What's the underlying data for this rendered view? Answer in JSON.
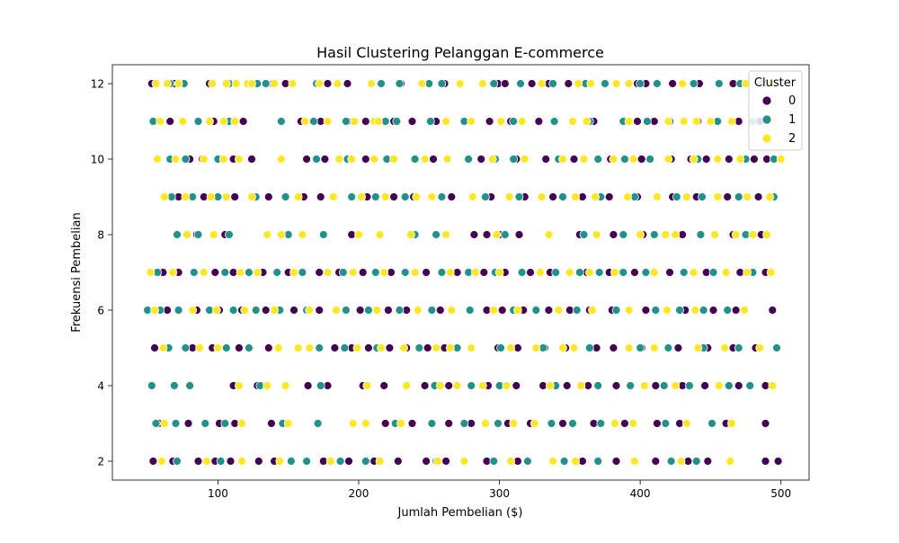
{
  "chart_data": {
    "type": "scatter",
    "title": "Hasil Clustering Pelanggan E-commerce",
    "xlabel": "Jumlah Pembelian ($)",
    "ylabel": "Frekuensi Pembelian",
    "xlim": [
      25,
      520
    ],
    "ylim": [
      1.5,
      12.5
    ],
    "xticks": [
      100,
      200,
      300,
      400,
      500
    ],
    "yticks": [
      2,
      4,
      6,
      8,
      10,
      12
    ],
    "grid": false,
    "legend": {
      "title": "Cluster",
      "placement": "top-right"
    },
    "colors": {
      "0": "#440154",
      "1": "#21918c",
      "2": "#fde725"
    },
    "series": [
      {
        "name": "0",
        "x": [],
        "y": []
      },
      {
        "name": "1",
        "x": [],
        "y": []
      },
      {
        "name": "2",
        "x": [],
        "y": []
      }
    ],
    "points_by_row": {
      "12": {
        "0": [
          53,
          69,
          94,
          139,
          148,
          178,
          192,
          230,
          261,
          299,
          304,
          323,
          335,
          349,
          356,
          398,
          404,
          423,
          442,
          466,
          489
        ],
        "1": [
          66,
          76,
          108,
          128,
          134,
          170,
          216,
          229,
          250,
          259,
          296,
          315,
          338,
          361,
          375,
          400,
          412,
          438,
          456,
          471,
          486
        ],
        "2": [
          56,
          64,
          72,
          96,
          106,
          113,
          121,
          124,
          140,
          153,
          172,
          185,
          209,
          245,
          272,
          288,
          330,
          356,
          365,
          383,
          392,
          430,
          475,
          492
        ]
      },
      "11": {
        "0": [
          66,
          97,
          118,
          159,
          173,
          192,
          205,
          225,
          238,
          255,
          293,
          308,
          328,
          367,
          398,
          410,
          421,
          441,
          470,
          485
        ],
        "1": [
          54,
          86,
          108,
          145,
          168,
          191,
          219,
          227,
          251,
          275,
          310,
          339,
          364,
          388,
          405,
          455,
          480
        ],
        "2": [
          59,
          75,
          94,
          104,
          112,
          162,
          178,
          197,
          211,
          214,
          262,
          280,
          301,
          316,
          352,
          362,
          392,
          420,
          431,
          440,
          450,
          465,
          493
        ]
      },
      "10": {
        "0": [
          80,
          89,
          111,
          124,
          163,
          176,
          205,
          224,
          253,
          287,
          312,
          333,
          353,
          379,
          401,
          422,
          436,
          447,
          463,
          481,
          490
        ],
        "1": [
          66,
          77,
          100,
          170,
          192,
          220,
          240,
          278,
          297,
          310,
          342,
          370,
          389,
          407,
          441,
          475,
          495
        ],
        "2": [
          57,
          70,
          90,
          104,
          115,
          145,
          186,
          195,
          211,
          225,
          247,
          263,
          295,
          318,
          345,
          360,
          381,
          395,
          420,
          438,
          455,
          471,
          500
        ]
      },
      "9": {
        "0": [
          72,
          90,
          112,
          136,
          161,
          173,
          206,
          225,
          239,
          266,
          294,
          318,
          338,
          359,
          378,
          398,
          423,
          440,
          462,
          484
        ],
        "1": [
          67,
          82,
          100,
          127,
          148,
          195,
          212,
          233,
          259,
          290,
          314,
          345,
          372,
          396,
          426,
          444,
          470,
          495
        ],
        "2": [
          62,
          77,
          95,
          106,
          124,
          157,
          182,
          202,
          219,
          241,
          252,
          281,
          307,
          330,
          354,
          368,
          391,
          412,
          433,
          455,
          476,
          492
        ]
      },
      "8": {
        "0": [
          85,
          105,
          195,
          282,
          291,
          300,
          314,
          335,
          357,
          381,
          402,
          430,
          466,
          486
        ],
        "1": [
          71,
          86,
          108,
          150,
          175,
          240,
          255,
          304,
          360,
          388,
          410,
          443,
          475
        ],
        "2": [
          78,
          97,
          135,
          145,
          160,
          200,
          215,
          237,
          262,
          298,
          335,
          369,
          400,
          418,
          425,
          453,
          468,
          480,
          490
        ]
      },
      "7": {
        "0": [
          61,
          72,
          98,
          111,
          132,
          150,
          172,
          186,
          203,
          223,
          248,
          270,
          289,
          304,
          322,
          336,
          362,
          378,
          396,
          421,
          447,
          471,
          489
        ],
        "1": [
          57,
          83,
          105,
          122,
          142,
          160,
          189,
          212,
          233,
          259,
          278,
          297,
          316,
          340,
          357,
          371,
          388,
          404,
          431,
          452,
          480
        ],
        "2": [
          52,
          68,
          90,
          116,
          128,
          154,
          178,
          196,
          218,
          240,
          265,
          283,
          300,
          329,
          350,
          364,
          382,
          410,
          438,
          461,
          476,
          493
        ]
      },
      "6": {
        "0": [
          64,
          85,
          101,
          117,
          134,
          154,
          172,
          201,
          221,
          234,
          258,
          291,
          302,
          317,
          335,
          350,
          364,
          380,
          404,
          432,
          452,
          468,
          494
        ],
        "1": [
          50,
          59,
          72,
          94,
          111,
          127,
          144,
          163,
          191,
          207,
          229,
          252,
          279,
          310,
          326,
          355,
          383,
          411,
          428,
          445,
          462
        ],
        "2": [
          55,
          82,
          99,
          119,
          140,
          165,
          184,
          213,
          242,
          266,
          296,
          313,
          342,
          366,
          392,
          419,
          439,
          474
        ]
      },
      "5": {
        "0": [
          55,
          82,
          96,
          115,
          136,
          183,
          195,
          207,
          222,
          234,
          249,
          261,
          299,
          313,
          332,
          347,
          369,
          381,
          401,
          427,
          448,
          466,
          482
        ],
        "1": [
          65,
          77,
          106,
          122,
          172,
          190,
          213,
          243,
          270,
          301,
          331,
          364,
          400,
          420,
          445,
          470,
          497
        ],
        "2": [
          61,
          87,
          100,
          143,
          157,
          165,
          199,
          216,
          232,
          255,
          265,
          280,
          308,
          326,
          345,
          353,
          392,
          410,
          441,
          460,
          485
        ]
      },
      "4": {
        "0": [
          111,
          128,
          164,
          178,
          203,
          218,
          247,
          264,
          292,
          312,
          331,
          348,
          363,
          383,
          411,
          430,
          446,
          470,
          489
        ],
        "1": [
          53,
          69,
          80,
          130,
          173,
          206,
          254,
          280,
          300,
          340,
          370,
          393,
          417,
          435,
          463,
          478
        ],
        "2": [
          115,
          135,
          148,
          206,
          234,
          258,
          270,
          288,
          305,
          336,
          358,
          403,
          425,
          456,
          494
        ]
      },
      "3": {
        "0": [
          58,
          79,
          101,
          112,
          138,
          149,
          219,
          238,
          264,
          280,
          306,
          322,
          345,
          367,
          389,
          412,
          428,
          461,
          489
        ],
        "1": [
          56,
          70,
          91,
          105,
          146,
          171,
          226,
          252,
          275,
          299,
          337,
          352,
          372,
          418,
          451
        ],
        "2": [
          62,
          117,
          150,
          196,
          205,
          230,
          290,
          310,
          325,
          382,
          395,
          433,
          465
        ]
      },
      "2": {
        "0": [
          54,
          68,
          86,
          98,
          109,
          129,
          140,
          175,
          193,
          211,
          228,
          248,
          262,
          291,
          313,
          338,
          359,
          383,
          411,
          434,
          448,
          489,
          498
        ],
        "1": [
          71,
          102,
          152,
          163,
          187,
          205,
          255,
          296,
          320,
          346,
          370,
          422,
          440
        ],
        "2": [
          60,
          92,
          117,
          144,
          180,
          215,
          256,
          275,
          308,
          338,
          354,
          396,
          429,
          464
        ]
      }
    }
  }
}
